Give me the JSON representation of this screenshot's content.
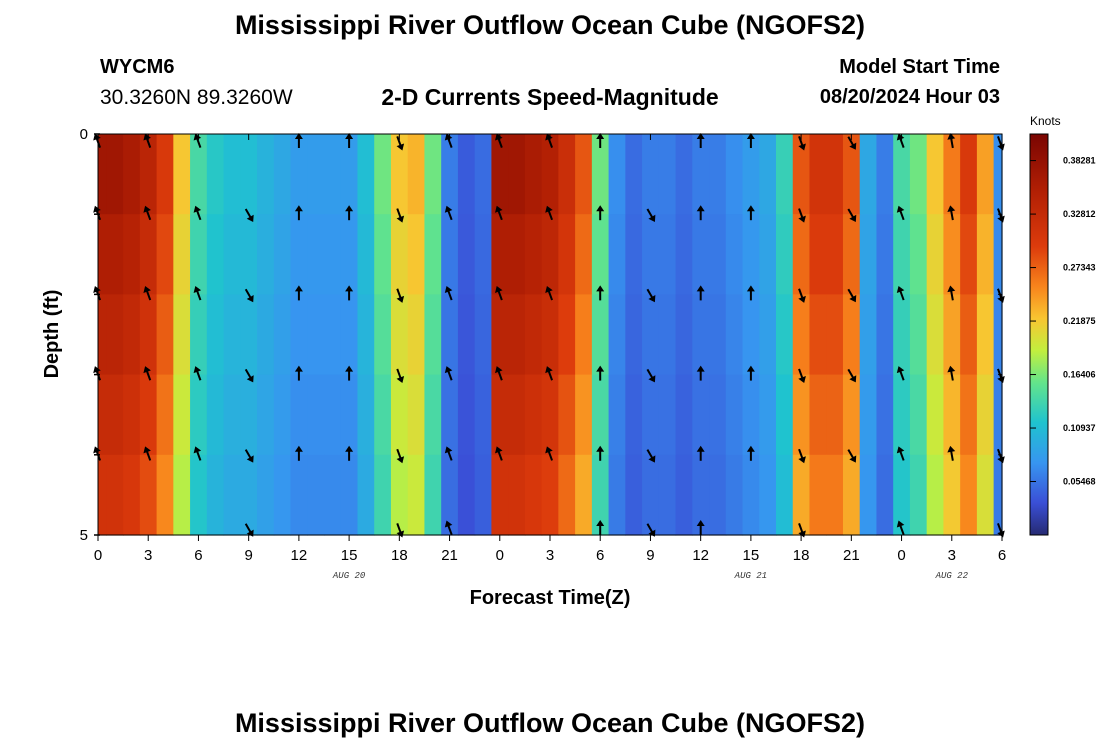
{
  "header": {
    "title": "Mississippi River Outflow Ocean Cube (NGOFS2)",
    "station_id": "WYCM6",
    "coordinates": "30.3260N  89.3260W",
    "chart_title": "2-D Currents Speed-Magnitude",
    "model_start_label": "Model Start Time",
    "model_start_time": "08/20/2024 Hour 03"
  },
  "footer": {
    "title": "Mississippi River Outflow Ocean Cube (NGOFS2)"
  },
  "chart_data": {
    "type": "heatmap",
    "title": "2-D Currents Speed-Magnitude",
    "xlabel": "Forecast Time(Z)",
    "ylabel": "Depth (ft)",
    "x_tick_labels": [
      "0",
      "3",
      "6",
      "9",
      "12",
      "15",
      "18",
      "21",
      "0",
      "3",
      "6",
      "9",
      "12",
      "15",
      "18",
      "21",
      "0",
      "3",
      "6"
    ],
    "date_labels": [
      "AUG 20",
      "AUG 21",
      "AUG 22"
    ],
    "y_tick_labels": [
      "0",
      "5"
    ],
    "ylim": [
      0,
      5
    ],
    "xlim_hours": [
      0,
      54
    ],
    "colorbar": {
      "unit": "Knots",
      "min": 0,
      "max": 0.41,
      "tick_labels": [
        "0.38281",
        "0.32812",
        "0.27343",
        "0.21875",
        "0.16406",
        "0.10937",
        "0.05468"
      ],
      "tick_values": [
        0.38281,
        0.32812,
        0.27343,
        0.21875,
        0.16406,
        0.10937,
        0.05468
      ]
    },
    "depth_levels_ft": [
      0.5,
      1.5,
      2.5,
      3.5,
      4.5
    ],
    "speed_profile_hours": [
      0,
      1,
      2,
      3,
      4,
      5,
      6,
      7,
      8,
      9,
      10,
      11,
      12,
      13,
      14,
      15,
      16,
      17,
      18,
      19,
      20,
      21,
      22,
      23,
      24,
      25,
      26,
      27,
      28,
      29,
      30,
      31,
      32,
      33,
      34,
      35,
      36,
      37,
      38,
      39,
      40,
      41,
      42,
      43,
      44,
      45,
      46,
      47,
      48,
      49,
      50,
      51,
      52,
      53,
      54
    ],
    "speed_profile_knots": [
      0.37,
      0.37,
      0.36,
      0.34,
      0.3,
      0.22,
      0.14,
      0.12,
      0.11,
      0.11,
      0.1,
      0.09,
      0.08,
      0.08,
      0.08,
      0.08,
      0.11,
      0.16,
      0.22,
      0.23,
      0.16,
      0.06,
      0.04,
      0.05,
      0.37,
      0.37,
      0.36,
      0.35,
      0.32,
      0.28,
      0.16,
      0.07,
      0.05,
      0.06,
      0.06,
      0.05,
      0.06,
      0.06,
      0.07,
      0.08,
      0.09,
      0.13,
      0.28,
      0.31,
      0.31,
      0.28,
      0.09,
      0.06,
      0.14,
      0.16,
      0.22,
      0.26,
      0.3,
      0.24,
      0.07
    ],
    "arrow_rows_ft": [
      0,
      1,
      2,
      3,
      4,
      5
    ],
    "arrow_columns_hours": [
      0,
      3,
      6,
      9,
      12,
      15,
      18,
      21,
      24,
      27,
      30,
      33,
      36,
      39,
      42,
      45,
      48,
      51,
      54
    ],
    "current_direction_deg": [
      160,
      160,
      160,
      330,
      180,
      180,
      340,
      160,
      160,
      160,
      180,
      330,
      180,
      180,
      340,
      330,
      160,
      170,
      340
    ]
  }
}
